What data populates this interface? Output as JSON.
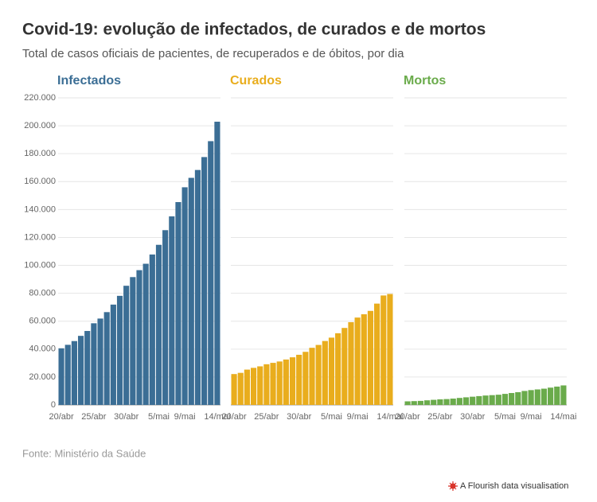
{
  "header": {
    "title": "Covid-19: evolução de infectados, de curados e de mortos",
    "subtitle": "Total de casos oficiais de pacientes, de recuperados e de óbitos, por dia"
  },
  "footer": {
    "source": "Fonte: Ministério da Saúde",
    "credit": "A Flourish data visualisation"
  },
  "chart_data": [
    {
      "type": "bar",
      "title": "Infectados",
      "color": "#3b6e95",
      "categories": [
        "20/abr",
        null,
        null,
        null,
        null,
        "25/abr",
        null,
        null,
        null,
        null,
        "30/abr",
        null,
        null,
        null,
        null,
        "5/mai",
        null,
        null,
        null,
        "9/mai",
        null,
        null,
        null,
        null,
        "14/mai"
      ],
      "values": [
        40581,
        43079,
        45757,
        49492,
        52995,
        58509,
        61888,
        66501,
        71886,
        78162,
        85380,
        91589,
        96559,
        101147,
        107780,
        114715,
        125218,
        135106,
        145328,
        155939,
        162699,
        168331,
        177589,
        188974,
        202918
      ],
      "ylim": [
        0,
        220000
      ],
      "yticks": [
        0,
        {
          "value": 20000,
          "label": "20.000"
        },
        {
          "value": 40000,
          "label": "40.000"
        },
        {
          "value": 60000,
          "label": "60.000"
        },
        {
          "value": 80000,
          "label": "80.000"
        },
        {
          "value": 100000,
          "label": "100.000"
        },
        {
          "value": 120000,
          "label": "120.000"
        },
        {
          "value": 140000,
          "label": "140.000"
        },
        {
          "value": 160000,
          "label": "160.000"
        },
        {
          "value": 180000,
          "label": "180.000"
        },
        {
          "value": 200000,
          "label": "200.000"
        },
        {
          "value": 220000,
          "label": "220.000"
        }
      ],
      "grid": true
    },
    {
      "type": "bar",
      "title": "Curados",
      "color": "#e9ad1d",
      "categories": [
        "20/abr",
        null,
        null,
        null,
        null,
        "25/abr",
        null,
        null,
        null,
        null,
        "30/abr",
        null,
        null,
        null,
        null,
        "5/mai",
        null,
        null,
        null,
        "9/mai",
        null,
        null,
        null,
        null,
        "14/mai"
      ],
      "values": [
        22130,
        22991,
        25318,
        26573,
        27655,
        29160,
        30152,
        31142,
        32544,
        34132,
        35935,
        38039,
        40937,
        42991,
        45815,
        48221,
        51370,
        55162,
        59297,
        62597,
        64957,
        67384,
        72597,
        78424,
        79479
      ],
      "ylim": [
        0,
        220000
      ],
      "grid": true
    },
    {
      "type": "bar",
      "title": "Mortos",
      "color": "#6aab4b",
      "categories": [
        "20/abr",
        null,
        null,
        null,
        null,
        "25/abr",
        null,
        null,
        null,
        null,
        "30/abr",
        null,
        null,
        null,
        null,
        "5/mai",
        null,
        null,
        null,
        "9/mai",
        null,
        null,
        null,
        null,
        "14/mai"
      ],
      "values": [
        2575,
        2741,
        2906,
        3313,
        3670,
        4016,
        4205,
        4543,
        5017,
        5466,
        5901,
        6329,
        6750,
        7025,
        7321,
        7921,
        8536,
        9146,
        10017,
        10627,
        11123,
        11653,
        12400,
        13149,
        13993
      ],
      "ylim": [
        0,
        220000
      ],
      "grid": true
    }
  ]
}
